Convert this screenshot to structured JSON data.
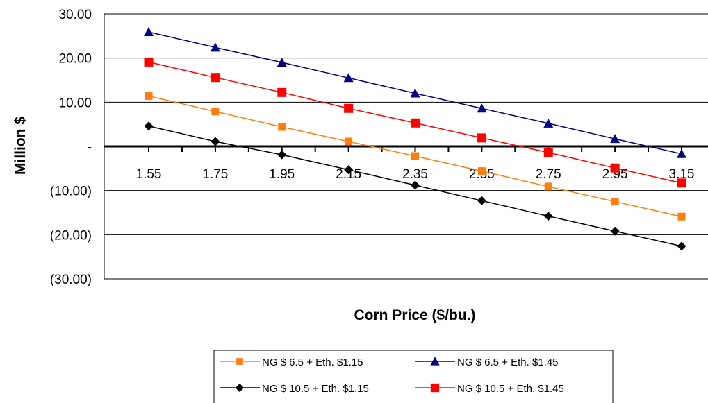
{
  "chart_data": {
    "type": "line",
    "xlabel": "Corn Price ($/bu.)",
    "ylabel": "Million $",
    "x": [
      "1.55",
      "1.75",
      "1.95",
      "2.15",
      "2.35",
      "2.55",
      "2.75",
      "2.95",
      "3.15"
    ],
    "ylim": [
      -30,
      30
    ],
    "yticks": [
      {
        "value": 30,
        "label": "30.00"
      },
      {
        "value": 20,
        "label": "20.00"
      },
      {
        "value": 10,
        "label": "10.00"
      },
      {
        "value": 0,
        "label": "-"
      },
      {
        "value": -10,
        "label": "(10.00)"
      },
      {
        "value": -20,
        "label": "(20.00)"
      },
      {
        "value": -30,
        "label": "(30.00)"
      }
    ],
    "grid": true,
    "legend_position": "bottom",
    "series": [
      {
        "name": "NG $ 6.5 + Eth. $1.15",
        "color": "#ff7f0e",
        "marker": "square",
        "values": [
          11.4,
          7.9,
          4.4,
          1.1,
          -2.2,
          -5.6,
          -9.1,
          -12.5,
          -15.9
        ]
      },
      {
        "name": "NG $ 6.5 + Eth. $1.45",
        "color": "#000080",
        "marker": "triangle",
        "values": [
          25.9,
          22.4,
          19.0,
          15.5,
          12.0,
          8.6,
          5.2,
          1.7,
          -1.7
        ]
      },
      {
        "name": "NG $ 10.5 + Eth. $1.15",
        "color": "#000000",
        "marker": "diamond",
        "values": [
          4.6,
          1.1,
          -1.9,
          -5.3,
          -8.8,
          -12.3,
          -15.8,
          -19.2,
          -22.6
        ]
      },
      {
        "name": "NG $ 10.5 + Eth. $1.45",
        "color": "#ff0000",
        "marker": "square",
        "values": [
          19.1,
          15.6,
          12.2,
          8.6,
          5.3,
          1.9,
          -1.4,
          -4.9,
          -8.3
        ]
      }
    ]
  }
}
